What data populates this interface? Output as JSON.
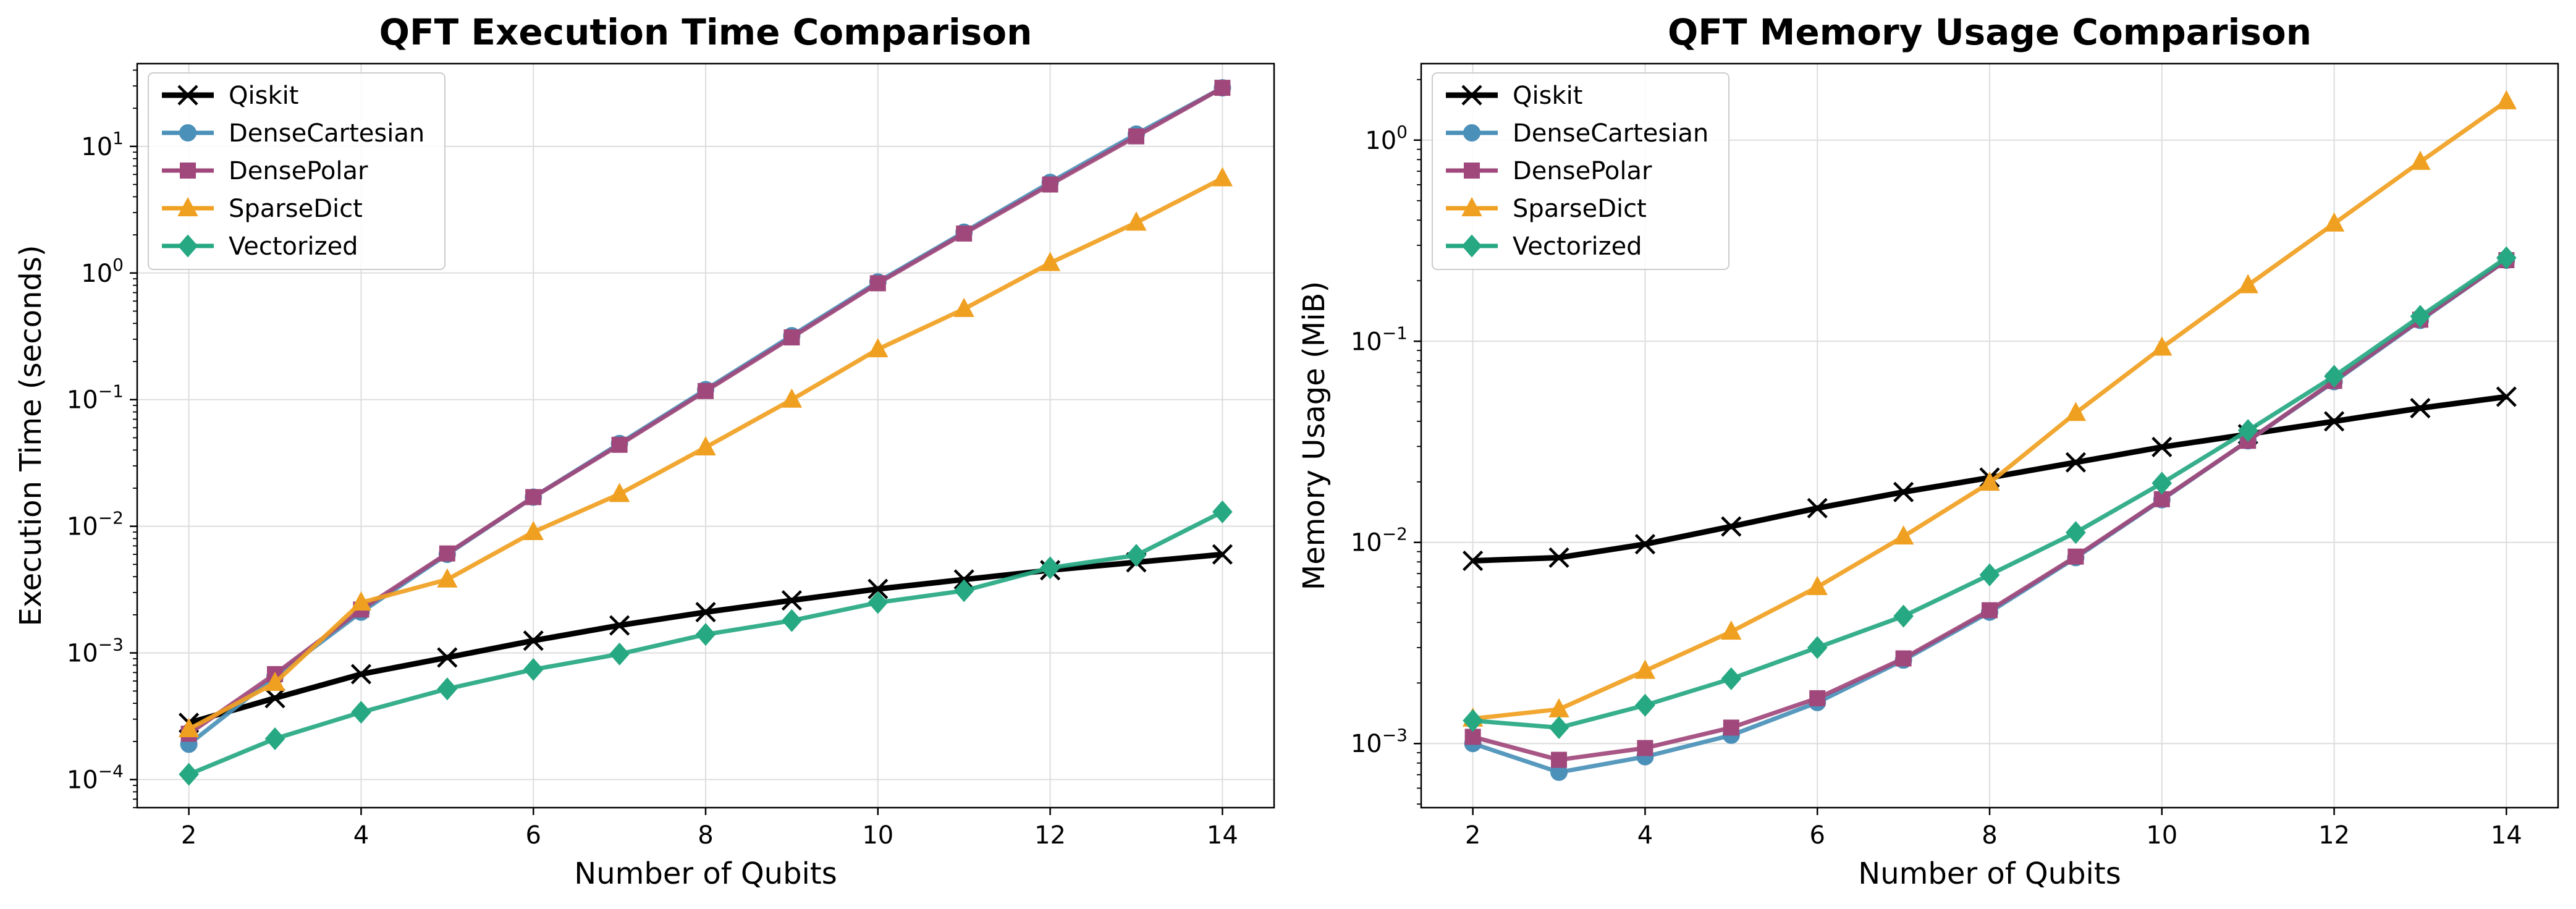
{
  "chart_data": [
    {
      "type": "line",
      "title": "QFT Execution Time Comparison",
      "xlabel": "Number of Qubits",
      "ylabel": "Execution Time (seconds)",
      "yscale": "log",
      "xlim": [
        1.4,
        14.6
      ],
      "ylim": [
        6e-05,
        45
      ],
      "xticks": [
        2,
        4,
        6,
        8,
        10,
        12,
        14
      ],
      "yticks": [
        {
          "value": 0.0001,
          "base": "10",
          "exp": "−4"
        },
        {
          "value": 0.001,
          "base": "10",
          "exp": "−3"
        },
        {
          "value": 0.01,
          "base": "10",
          "exp": "−2"
        },
        {
          "value": 0.1,
          "base": "10",
          "exp": "−1"
        },
        {
          "value": 1,
          "base": "10",
          "exp": "0"
        },
        {
          "value": 10,
          "base": "10",
          "exp": "1"
        }
      ],
      "grid": true,
      "legend_position": "upper-left",
      "x": [
        2,
        3,
        4,
        5,
        6,
        7,
        8,
        9,
        10,
        11,
        12,
        13,
        14
      ],
      "series": [
        {
          "name": "Qiskit",
          "color": "#000000",
          "marker": "x",
          "values": [
            0.00028,
            0.00044,
            0.00068,
            0.00092,
            0.00125,
            0.00165,
            0.0021,
            0.0026,
            0.0032,
            0.0038,
            0.0045,
            0.0052,
            0.006
          ]
        },
        {
          "name": "DenseCartesian",
          "color": "#4a90b8",
          "marker": "circle",
          "values": [
            0.00019,
            0.00065,
            0.0021,
            0.006,
            0.017,
            0.045,
            0.12,
            0.32,
            0.85,
            2.1,
            5.2,
            12.5,
            29
          ]
        },
        {
          "name": "DensePolar",
          "color": "#a0487b",
          "marker": "square",
          "values": [
            0.00023,
            0.00068,
            0.0022,
            0.0061,
            0.017,
            0.044,
            0.117,
            0.31,
            0.83,
            2.05,
            5.0,
            12.0,
            29
          ]
        },
        {
          "name": "SparseDict",
          "color": "#f0a020",
          "marker": "triangle",
          "values": [
            0.00025,
            0.00058,
            0.0025,
            0.0038,
            0.009,
            0.018,
            0.042,
            0.1,
            0.25,
            0.52,
            1.2,
            2.5,
            5.6
          ]
        },
        {
          "name": "Vectorized",
          "color": "#26a882",
          "marker": "diamond",
          "values": [
            0.00011,
            0.00021,
            0.00034,
            0.00052,
            0.00074,
            0.00098,
            0.0014,
            0.0018,
            0.0025,
            0.0031,
            0.0047,
            0.0059,
            0.013
          ]
        }
      ]
    },
    {
      "type": "line",
      "title": "QFT Memory Usage Comparison",
      "xlabel": "Number of Qubits",
      "ylabel": "Memory Usage (MiB)",
      "yscale": "log",
      "xlim": [
        1.4,
        14.6
      ],
      "ylim": [
        0.00048,
        2.4
      ],
      "xticks": [
        2,
        4,
        6,
        8,
        10,
        12,
        14
      ],
      "yticks": [
        {
          "value": 0.001,
          "base": "10",
          "exp": "−3"
        },
        {
          "value": 0.01,
          "base": "10",
          "exp": "−2"
        },
        {
          "value": 0.1,
          "base": "10",
          "exp": "−1"
        },
        {
          "value": 1,
          "base": "10",
          "exp": "0"
        }
      ],
      "grid": true,
      "legend_position": "upper-left",
      "x": [
        2,
        3,
        4,
        5,
        6,
        7,
        8,
        9,
        10,
        11,
        12,
        13,
        14
      ],
      "series": [
        {
          "name": "Qiskit",
          "color": "#000000",
          "marker": "x",
          "values": [
            0.0081,
            0.0084,
            0.0098,
            0.012,
            0.0148,
            0.0178,
            0.021,
            0.025,
            0.0298,
            0.0345,
            0.04,
            0.0465,
            0.053
          ]
        },
        {
          "name": "DenseCartesian",
          "color": "#4a90b8",
          "marker": "circle",
          "values": [
            0.001,
            0.00072,
            0.00086,
            0.0011,
            0.0016,
            0.0026,
            0.0045,
            0.0084,
            0.0163,
            0.032,
            0.063,
            0.127,
            0.253
          ]
        },
        {
          "name": "DensePolar",
          "color": "#a0487b",
          "marker": "square",
          "values": [
            0.00108,
            0.00083,
            0.00095,
            0.0012,
            0.00168,
            0.00265,
            0.0046,
            0.0085,
            0.0164,
            0.032,
            0.0635,
            0.128,
            0.253
          ]
        },
        {
          "name": "SparseDict",
          "color": "#f0a020",
          "marker": "triangle",
          "values": [
            0.00133,
            0.00148,
            0.0023,
            0.0036,
            0.006,
            0.0107,
            0.0198,
            0.044,
            0.093,
            0.19,
            0.385,
            0.78,
            1.56
          ]
        },
        {
          "name": "Vectorized",
          "color": "#26a882",
          "marker": "diamond",
          "values": [
            0.0013,
            0.0012,
            0.00155,
            0.0021,
            0.003,
            0.0043,
            0.0069,
            0.0112,
            0.0197,
            0.036,
            0.067,
            0.133,
            0.26
          ]
        }
      ]
    }
  ]
}
